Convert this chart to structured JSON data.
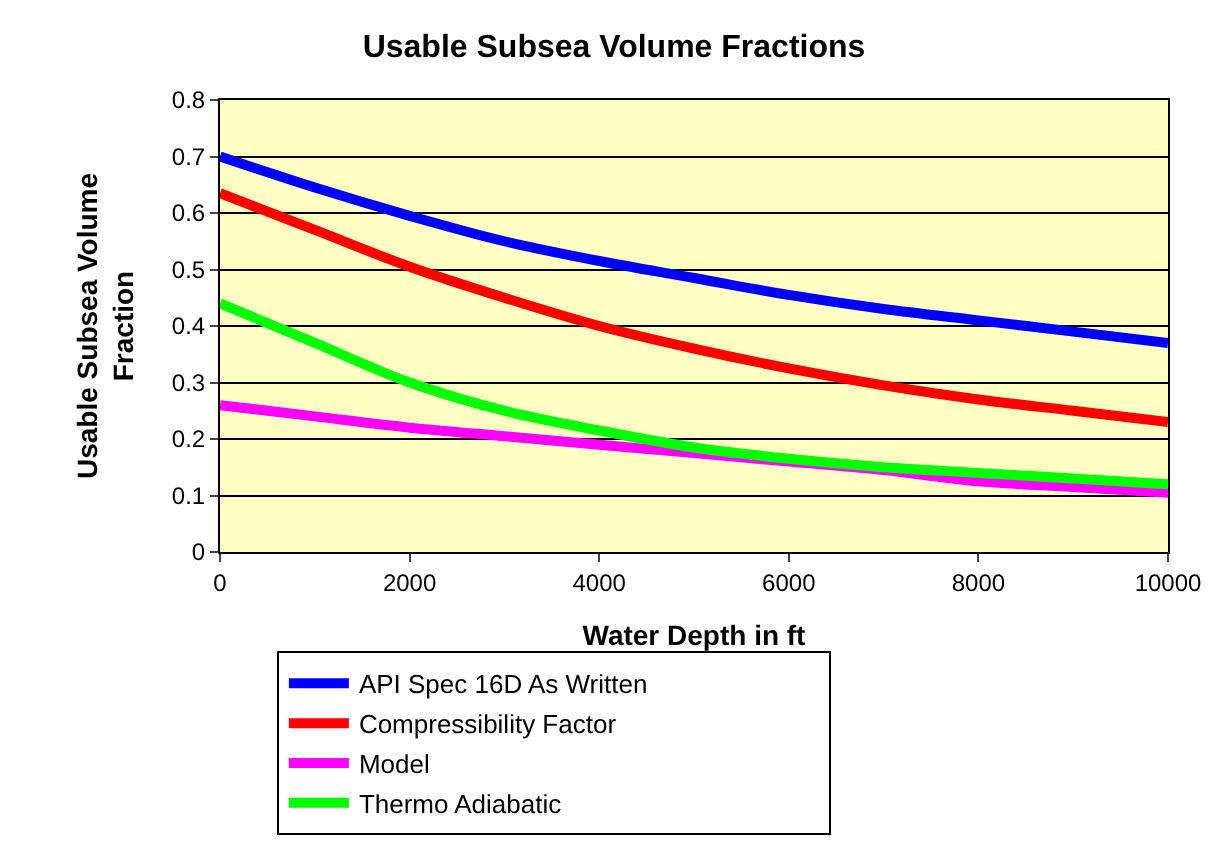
{
  "chart_data": {
    "type": "line",
    "title": "Usable Subsea Volume Fractions",
    "xlabel": "Water Depth in ft",
    "ylabel": "Usable Subsea Volume Fraction",
    "x": [
      0,
      1000,
      2000,
      3000,
      4000,
      5000,
      6000,
      7000,
      8000,
      9000,
      10000
    ],
    "series": [
      {
        "name": "API Spec 16D As Written",
        "color": "#0000ff",
        "values": [
          0.7,
          0.645,
          0.595,
          0.55,
          0.515,
          0.485,
          0.455,
          0.43,
          0.41,
          0.39,
          0.37
        ]
      },
      {
        "name": "Compressibility Factor",
        "color": "#ff0000",
        "values": [
          0.635,
          0.57,
          0.505,
          0.45,
          0.4,
          0.36,
          0.325,
          0.295,
          0.27,
          0.25,
          0.23
        ]
      },
      {
        "name": "Model",
        "color": "#ff00ff",
        "values": [
          0.26,
          0.24,
          0.22,
          0.205,
          0.19,
          0.175,
          0.16,
          0.145,
          0.125,
          0.115,
          0.105
        ]
      },
      {
        "name": "Thermo Adiabatic",
        "color": "#00ff00",
        "values": [
          0.44,
          0.37,
          0.3,
          0.25,
          0.215,
          0.185,
          0.165,
          0.15,
          0.14,
          0.13,
          0.12
        ]
      }
    ],
    "xlim": [
      0,
      10000
    ],
    "xticks": [
      0,
      2000,
      4000,
      6000,
      8000,
      10000
    ],
    "ylim": [
      0,
      0.8
    ],
    "yticks": [
      0,
      0.1,
      0.2,
      0.3,
      0.4,
      0.5,
      0.6,
      0.7,
      0.8
    ],
    "grid": "y",
    "legend": "bottom",
    "marker": "none",
    "line_style": "solid"
  }
}
